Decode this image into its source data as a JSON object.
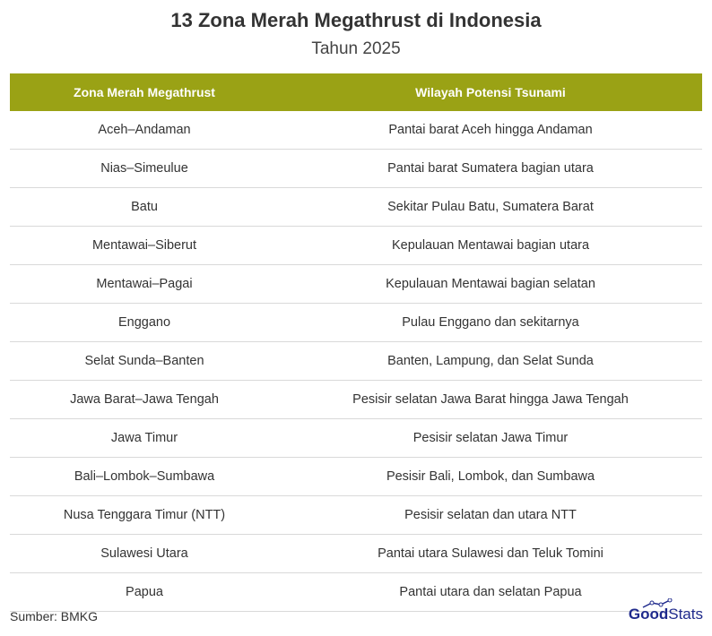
{
  "title": "13 Zona Merah Megathrust di Indonesia",
  "subtitle": "Tahun 2025",
  "colors": {
    "header": "#9aa215",
    "logo": "#1f2a8c"
  },
  "chart_data": {
    "type": "table",
    "columns": [
      "Zona Merah Megathrust",
      "Wilayah Potensi Tsunami"
    ],
    "rows": [
      [
        "Aceh–Andaman",
        "Pantai barat Aceh hingga Andaman"
      ],
      [
        "Nias–Simeulue",
        "Pantai barat Sumatera bagian utara"
      ],
      [
        "Batu",
        "Sekitar Pulau Batu, Sumatera Barat"
      ],
      [
        "Mentawai–Siberut",
        "Kepulauan Mentawai bagian utara"
      ],
      [
        "Mentawai–Pagai",
        "Kepulauan Mentawai bagian selatan"
      ],
      [
        "Enggano",
        "Pulau Enggano dan sekitarnya"
      ],
      [
        "Selat Sunda–Banten",
        "Banten, Lampung, dan Selat Sunda"
      ],
      [
        "Jawa Barat–Jawa Tengah",
        "Pesisir selatan Jawa Barat hingga Jawa Tengah"
      ],
      [
        "Jawa Timur",
        "Pesisir selatan Jawa Timur"
      ],
      [
        "Bali–Lombok–Sumbawa",
        "Pesisir Bali, Lombok, dan Sumbawa"
      ],
      [
        "Nusa Tenggara Timur (NTT)",
        "Pesisir selatan dan utara NTT"
      ],
      [
        "Sulawesi Utara",
        "Pantai utara Sulawesi dan Teluk Tomini"
      ],
      [
        "Papua",
        "Pantai utara dan selatan Papua"
      ]
    ]
  },
  "source": "Sumber: BMKG",
  "logo": {
    "part1": "Good",
    "part2": "Stats"
  }
}
